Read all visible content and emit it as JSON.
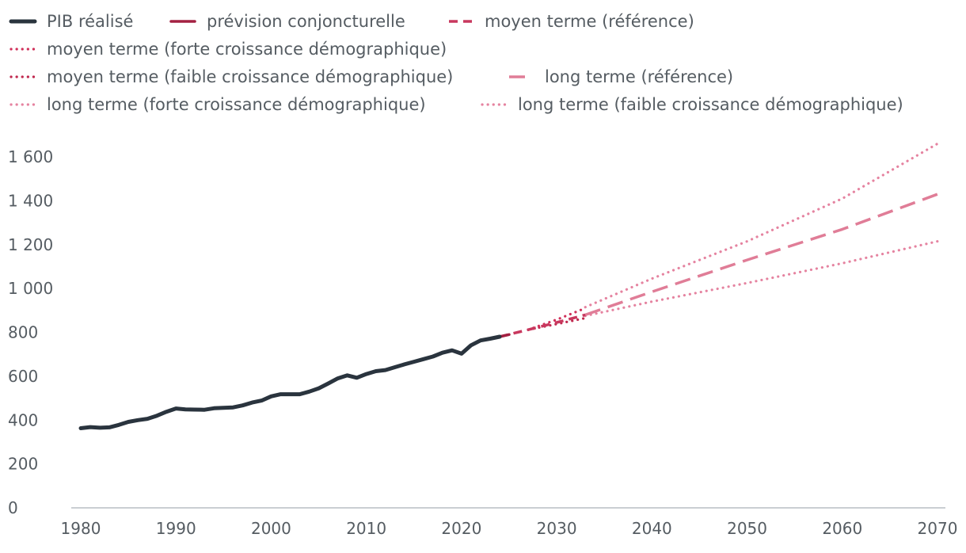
{
  "chart_data": {
    "type": "line",
    "title": "",
    "xlabel": "",
    "ylabel": "",
    "xlim": [
      1980,
      2070
    ],
    "ylim": [
      0,
      1700
    ],
    "x_ticks": [
      "1980",
      "1990",
      "2000",
      "2010",
      "2020",
      "2030",
      "2040",
      "2050",
      "2060",
      "2070"
    ],
    "y_ticks": [
      "0",
      "200",
      "400",
      "600",
      "800",
      "1 000",
      "1 200",
      "1 400",
      "1 600"
    ],
    "grid": false,
    "legend_position": "top",
    "series": [
      {
        "name": "PIB réalisé",
        "color": "#2a343e",
        "style": "solid-thick",
        "x": [
          1980,
          1981,
          1982,
          1983,
          1984,
          1985,
          1986,
          1987,
          1988,
          1989,
          1990,
          1991,
          1992,
          1993,
          1994,
          1995,
          1996,
          1997,
          1998,
          1999,
          2000,
          2001,
          2002,
          2003,
          2004,
          2005,
          2006,
          2007,
          2008,
          2009,
          2010,
          2011,
          2012,
          2013,
          2014,
          2015,
          2016,
          2017,
          2018,
          2019,
          2020,
          2021,
          2022,
          2023,
          2024
        ],
        "values": [
          363,
          368,
          365,
          367,
          378,
          392,
          400,
          406,
          420,
          438,
          453,
          449,
          448,
          447,
          454,
          456,
          458,
          467,
          480,
          489,
          508,
          518,
          518,
          518,
          530,
          545,
          567,
          590,
          604,
          593,
          610,
          623,
          628,
          641,
          654,
          666,
          678,
          690,
          707,
          718,
          703,
          741,
          763,
          771,
          780
        ]
      },
      {
        "name": "prévision conjoncturelle",
        "color": "#a32142",
        "style": "solid",
        "x": [
          2024,
          2025
        ],
        "values": [
          780,
          790
        ]
      },
      {
        "name": "moyen terme (référence)",
        "color": "#c8385e",
        "style": "dashed",
        "x": [
          2024,
          2027,
          2030,
          2033
        ],
        "values": [
          780,
          812,
          845,
          880
        ]
      },
      {
        "name": "moyen terme (forte croissance démographique)",
        "color": "#d0305a",
        "style": "dotted",
        "x": [
          2027,
          2030,
          2033
        ],
        "values": [
          812,
          858,
          910
        ]
      },
      {
        "name": "moyen terme (faible croissance démographique)",
        "color": "#c0284e",
        "style": "dotted",
        "x": [
          2027,
          2030,
          2033
        ],
        "values": [
          812,
          838,
          865
        ]
      },
      {
        "name": "long terme (référence)",
        "color": "#e07d97",
        "style": "long-dashed",
        "x": [
          2033,
          2040,
          2050,
          2060,
          2070
        ],
        "values": [
          880,
          985,
          1130,
          1270,
          1430
        ]
      },
      {
        "name": "long terme (forte croissance démographique)",
        "color": "#e583a0",
        "style": "dotted",
        "x": [
          2033,
          2040,
          2050,
          2060,
          2070
        ],
        "values": [
          915,
          1045,
          1215,
          1410,
          1660
        ]
      },
      {
        "name": "long terme (faible croissance démographique)",
        "color": "#e583a0",
        "style": "dotted",
        "x": [
          2033,
          2040,
          2050,
          2060,
          2070
        ],
        "values": [
          875,
          940,
          1025,
          1115,
          1215
        ]
      }
    ]
  }
}
